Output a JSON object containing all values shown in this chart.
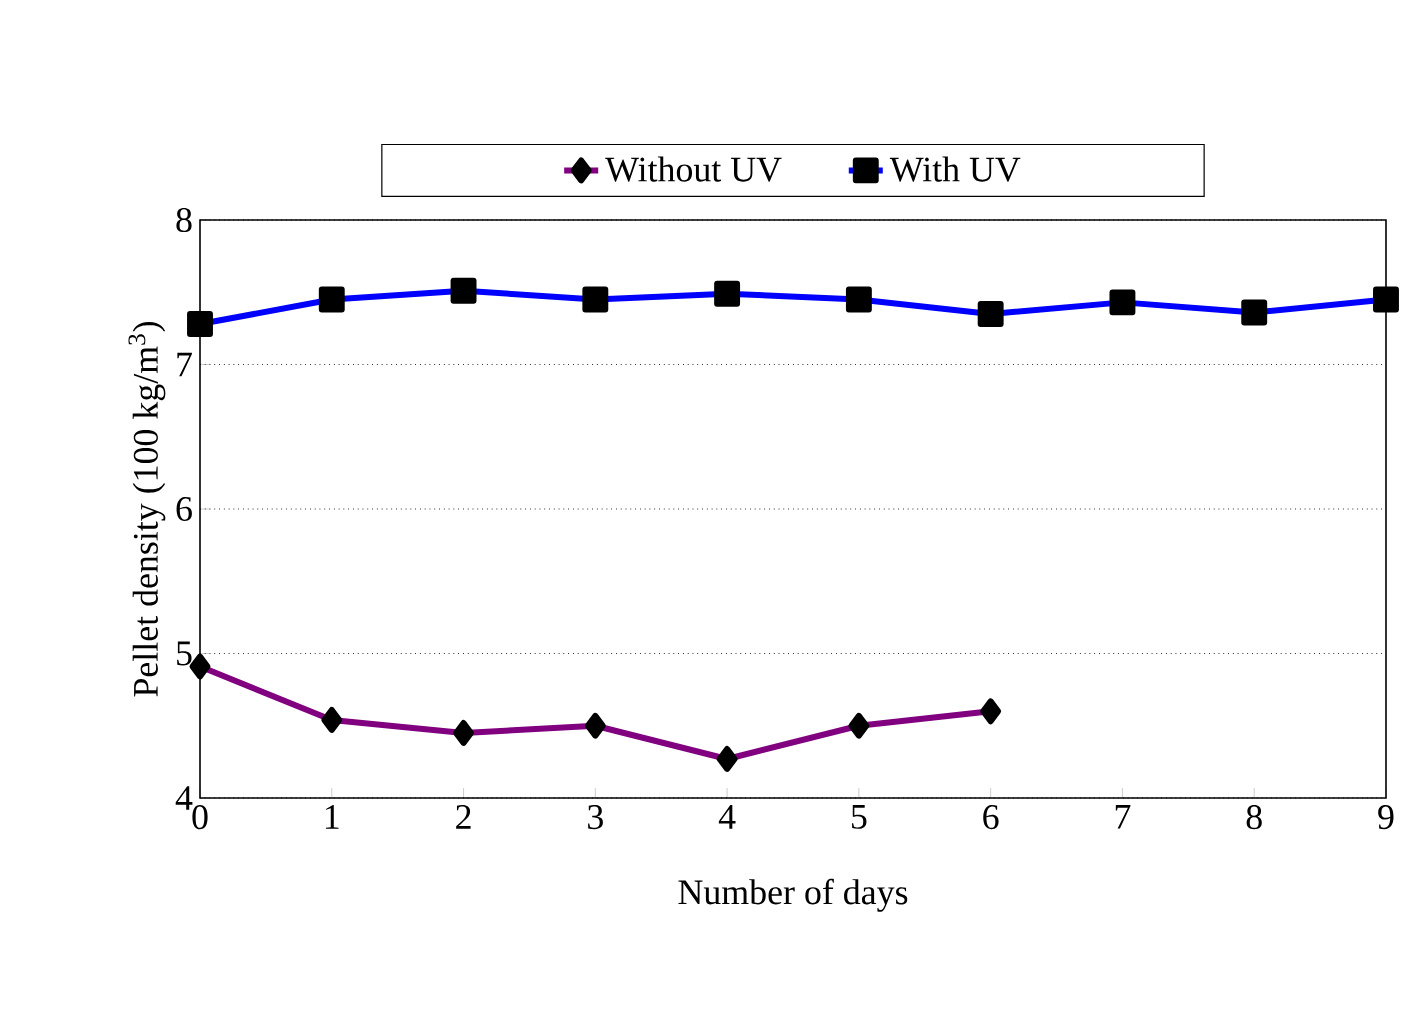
{
  "chart_data": {
    "type": "line",
    "xlabel": "Number of days",
    "ylabel": "Pellet density (100 kg/m$^{3}$)",
    "x": [
      0,
      1,
      2,
      3,
      4,
      5,
      6,
      7,
      8,
      9
    ],
    "series": [
      {
        "name": "Without UV",
        "color": "#800080",
        "marker": "diamond",
        "values": [
          4.91,
          4.54,
          4.45,
          4.5,
          4.27,
          4.5,
          4.6,
          null,
          null,
          null
        ]
      },
      {
        "name": "With UV",
        "color": "#0000ff",
        "marker": "square",
        "values": [
          7.28,
          7.45,
          7.51,
          7.45,
          7.49,
          7.45,
          7.35,
          7.43,
          7.36,
          7.45
        ]
      }
    ],
    "xlim": [
      0,
      9
    ],
    "xticks": [
      0,
      1,
      2,
      3,
      4,
      5,
      6,
      7,
      8,
      9
    ],
    "ylim": [
      4,
      8
    ],
    "yticks": [
      4,
      5,
      6,
      7,
      8
    ],
    "grid": "y",
    "legend": "top",
    "line_style": "solid"
  }
}
